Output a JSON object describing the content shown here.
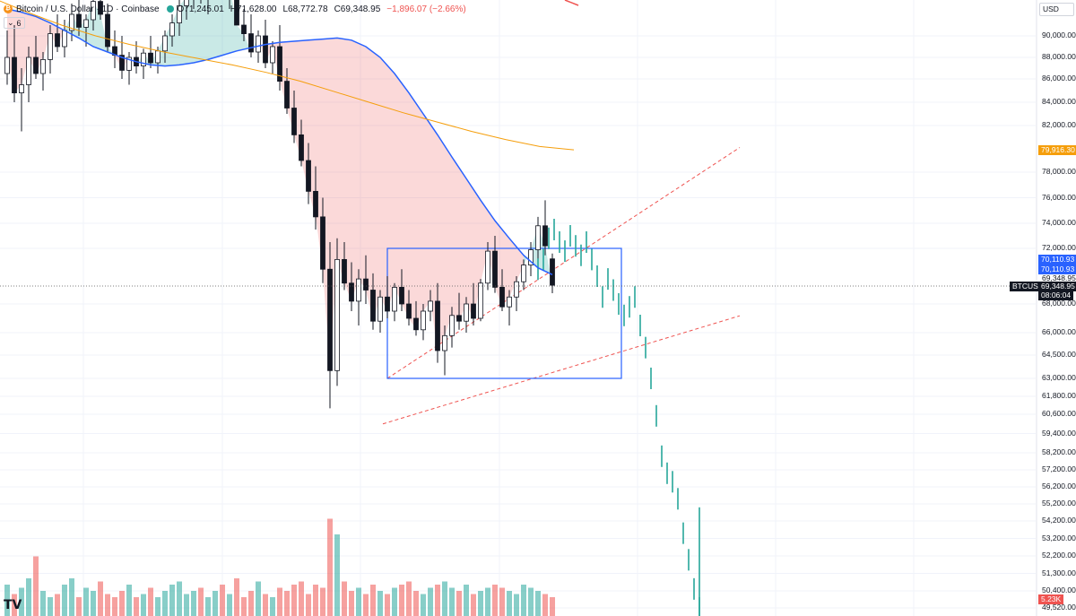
{
  "header": {
    "symbol_title": "Bitcoin / U.S. Dollar · 1D · Coinbase",
    "open": "O71,245.01",
    "high": "H71,628.00",
    "low": "L68,772.78",
    "close": "C69,348.95",
    "change": "−1,896.07 (−2.66%)",
    "indicator_count": "6"
  },
  "currency_button": "USD",
  "colors": {
    "up": "#26a69a",
    "down": "#ef5350",
    "ma_short": "#2962ff",
    "ma_long": "#f59e0b",
    "box": "#2962ff",
    "channel": "#ef5350",
    "projection": "#26a69a"
  },
  "price_axis": {
    "labels": [
      "90,000.00",
      "88,000.00",
      "86,000.00",
      "84,000.00",
      "82,000.00",
      "78,000.00",
      "76,000.00",
      "74,000.00",
      "72,000.00",
      "68,000.00",
      "66,000.00",
      "64,500.00",
      "63,000.00",
      "61,800.00",
      "60,600.00",
      "59,400.00",
      "58,200.00",
      "57,200.00",
      "56,200.00",
      "55,200.00",
      "54,200.00",
      "53,200.00",
      "52,200.00",
      "51,300.00",
      "50,400.00",
      "49,520.00"
    ],
    "ma_long_tag": "79,916.30",
    "ma_short_tag_1": "70,110.93",
    "ma_short_tag_2": "70,110.93",
    "last_price_above": "69,348.95",
    "symbol_tag": "BTCUSD",
    "last_price": "69,348.95",
    "countdown": "08:06:04",
    "volume_tag": "5.23K"
  },
  "chart_data": {
    "type": "candlestick",
    "symbol": "BTCUSD",
    "timeframe": "1D",
    "exchange": "Coinbase",
    "last_close": 69348.95,
    "ohlc_bars": [
      [
        86500,
        90500,
        85500,
        88000
      ],
      [
        88000,
        91000,
        84000,
        84800
      ],
      [
        84800,
        87000,
        81500,
        85500
      ],
      [
        85500,
        89000,
        84000,
        88000
      ],
      [
        88000,
        90000,
        86000,
        86500
      ],
      [
        86500,
        88500,
        85000,
        87800
      ],
      [
        87800,
        91000,
        86500,
        90200
      ],
      [
        90200,
        92000,
        88500,
        89000
      ],
      [
        89000,
        91500,
        88000,
        90500
      ],
      [
        90500,
        93000,
        89500,
        92000
      ],
      [
        92000,
        93500,
        90000,
        90800
      ],
      [
        90800,
        92000,
        89000,
        91500
      ],
      [
        91500,
        94000,
        90500,
        93200
      ],
      [
        93200,
        95000,
        91500,
        92000
      ],
      [
        92000,
        93000,
        88500,
        89000
      ],
      [
        89000,
        90500,
        87000,
        88200
      ],
      [
        88200,
        90000,
        86000,
        86800
      ],
      [
        86800,
        88500,
        85500,
        88000
      ],
      [
        88000,
        89500,
        86500,
        87200
      ],
      [
        87200,
        88800,
        86000,
        88400
      ],
      [
        88400,
        90000,
        87000,
        87500
      ],
      [
        87500,
        89000,
        86500,
        88600
      ],
      [
        88600,
        90500,
        87500,
        90000
      ],
      [
        90000,
        92000,
        89000,
        91200
      ],
      [
        91200,
        93500,
        90000,
        92800
      ],
      [
        92800,
        94500,
        91500,
        93600
      ],
      [
        93600,
        95500,
        92500,
        94500
      ],
      [
        94500,
        96000,
        93000,
        93500
      ],
      [
        93500,
        95000,
        92000,
        94800
      ],
      [
        94800,
        96500,
        93500,
        95200
      ],
      [
        95200,
        97000,
        94000,
        93800
      ],
      [
        93800,
        95500,
        92500,
        94600
      ],
      [
        94600,
        96000,
        93000,
        91000
      ],
      [
        91000,
        92500,
        89500,
        90200
      ],
      [
        90200,
        92000,
        88000,
        88500
      ],
      [
        88500,
        90500,
        87500,
        90000
      ],
      [
        90000,
        91500,
        87000,
        87500
      ],
      [
        87500,
        89500,
        86500,
        89000
      ],
      [
        89000,
        91000,
        85000,
        85800
      ],
      [
        85800,
        87000,
        83000,
        83500
      ],
      [
        83500,
        85000,
        80500,
        81200
      ],
      [
        81200,
        82500,
        78500,
        79000
      ],
      [
        79000,
        80500,
        75500,
        76500
      ],
      [
        76500,
        78500,
        73500,
        74500
      ],
      [
        74500,
        76000,
        69500,
        70500
      ],
      [
        70500,
        72500,
        61000,
        63500
      ],
      [
        63500,
        72800,
        62500,
        71200
      ],
      [
        71200,
        72500,
        69000,
        69500
      ],
      [
        69500,
        71000,
        67500,
        68200
      ],
      [
        68200,
        70500,
        66500,
        69800
      ],
      [
        69800,
        71500,
        68000,
        69000
      ],
      [
        69000,
        70200,
        66200,
        66800
      ],
      [
        66800,
        69000,
        66000,
        68500
      ],
      [
        68500,
        70000,
        67000,
        67500
      ],
      [
        67500,
        69500,
        66800,
        69200
      ],
      [
        69200,
        70500,
        67500,
        68000
      ],
      [
        68000,
        69000,
        66500,
        67000
      ],
      [
        67000,
        68200,
        65800,
        66200
      ],
      [
        66200,
        68000,
        65500,
        67500
      ],
      [
        67500,
        69000,
        66800,
        68200
      ],
      [
        68200,
        69500,
        64000,
        64800
      ],
      [
        64800,
        66500,
        63200,
        65800
      ],
      [
        65800,
        67800,
        65000,
        67200
      ],
      [
        67200,
        68800,
        66200,
        66800
      ],
      [
        66800,
        68500,
        66000,
        68000
      ],
      [
        68000,
        69500,
        66500,
        67000
      ],
      [
        67000,
        69800,
        66800,
        69500
      ],
      [
        69500,
        72500,
        69000,
        71800
      ],
      [
        71800,
        73000,
        68800,
        69200
      ],
      [
        69200,
        70500,
        67500,
        67800
      ],
      [
        67800,
        69000,
        66500,
        68500
      ],
      [
        68500,
        70000,
        67500,
        69600
      ],
      [
        69600,
        71200,
        69000,
        70800
      ],
      [
        70800,
        72500,
        70000,
        71900
      ],
      [
        71900,
        74500,
        71000,
        73800
      ],
      [
        73800,
        75800,
        71500,
        72200
      ],
      [
        71245.01,
        71628.0,
        68772.78,
        69348.95
      ]
    ],
    "moving_averages": [
      {
        "name": "MA short",
        "color": "#2962ff",
        "values": [
          92500,
          92200,
          91800,
          91200,
          90500,
          89800,
          89000,
          88500,
          88000,
          87600,
          87300,
          87200,
          87300,
          87500,
          87800,
          88200,
          88600,
          88900,
          89200,
          89400,
          89500,
          89600,
          89700,
          89800,
          89600,
          89000,
          88000,
          86500,
          84800,
          83000,
          81200,
          79300,
          77500,
          75800,
          74200,
          72800,
          71500,
          70600,
          70110.93
        ]
      },
      {
        "name": "MA long",
        "color": "#f59e0b",
        "values": [
          99000,
          97800,
          96500,
          95000,
          93500,
          92200,
          91000,
          90000,
          89200,
          88500,
          87900,
          87300,
          86600,
          85800,
          84900,
          84000,
          83100,
          82300,
          81500,
          80800,
          80200,
          79916.3
        ]
      }
    ],
    "channel_lines": [
      {
        "from": [
          63000,
          "start"
        ],
        "to": [
          76000,
          "end"
        ]
      },
      {
        "from": [
          60000,
          "start"
        ],
        "to": [
          66800,
          "end"
        ]
      }
    ],
    "range_box": {
      "top": 72000,
      "bottom": 63000
    },
    "projection": {
      "direction": "down",
      "target": 49520
    },
    "volume": {
      "last": "5.23K"
    },
    "y_axis_range": [
      49520,
      90000
    ]
  }
}
